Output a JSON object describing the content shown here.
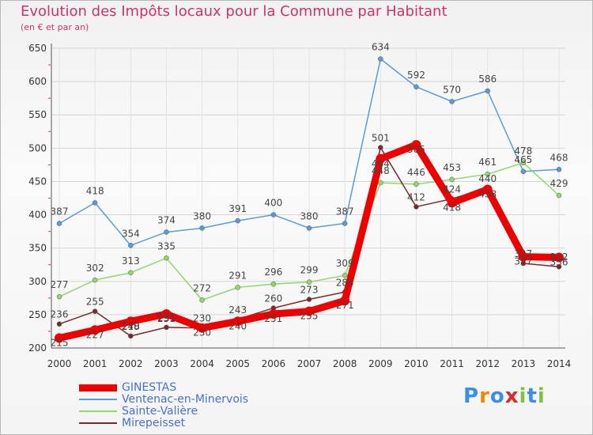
{
  "chart_data": {
    "type": "line",
    "title": "Evolution des Impôts locaux pour la Commune par Habitant",
    "subtitle": "(en € et par an)",
    "xlabel": "",
    "ylabel": "",
    "ylim": [
      200,
      650
    ],
    "yticks": [
      200,
      250,
      300,
      350,
      400,
      450,
      500,
      550,
      600,
      650
    ],
    "grid": true,
    "legend_position": "bottom-left",
    "x": [
      "2000",
      "2001",
      "2002",
      "2003",
      "2004",
      "2005",
      "2006",
      "2007",
      "2008",
      "2009",
      "2010",
      "2011",
      "2012",
      "2013",
      "2014"
    ],
    "series": [
      {
        "name": "Ventenac-en-Minervois",
        "color": "#5b9bd5",
        "values": [
          387,
          418,
          354,
          374,
          380,
          391,
          400,
          380,
          387,
          634,
          592,
          570,
          586,
          465,
          468
        ],
        "labels": [
          "387",
          "418",
          "354",
          "374",
          "380",
          "391",
          "400",
          "380",
          "387",
          "634",
          "592",
          "570",
          "586",
          "465",
          "468"
        ]
      },
      {
        "name": "Sainte-Valière",
        "color": "#8fd86a",
        "values": [
          277,
          302,
          313,
          335,
          272,
          291,
          296,
          299,
          309,
          448,
          446,
          453,
          461,
          478,
          429
        ],
        "labels": [
          "277",
          "302",
          "313",
          "335",
          "272",
          "291",
          "296",
          "299",
          "309",
          "448",
          "446",
          "453",
          "461",
          "478",
          "429"
        ]
      },
      {
        "name": "Mirepeisset",
        "color": "#7a2a2a",
        "values": [
          236,
          255,
          218,
          231,
          230,
          243,
          260,
          273,
          284,
          501,
          412,
          424,
          440,
          327,
          322
        ],
        "labels": [
          "236",
          "255",
          "218",
          "231",
          "230",
          "243",
          "260",
          "273",
          "284",
          "501",
          "412",
          "424",
          "440",
          "327",
          "322"
        ]
      },
      {
        "name": "GINESTAS",
        "color": "#ee0000",
        "values": [
          215,
          227,
          240,
          251,
          230,
          240,
          251,
          255,
          271,
          484,
          505,
          418,
          438,
          337,
          336
        ],
        "labels": [
          "215",
          "227",
          "240",
          "251",
          "230",
          "240",
          "251",
          "255",
          "271",
          "484",
          "505",
          "418",
          "438",
          "337",
          "336"
        ]
      }
    ],
    "legend": [
      {
        "name": "GINESTAS",
        "color": "#ee0000",
        "width": 9
      },
      {
        "name": "Ventenac-en-Minervois",
        "color": "#5b9bd5",
        "width": 2
      },
      {
        "name": "Sainte-Valière",
        "color": "#8fd86a",
        "width": 2
      },
      {
        "name": "Mirepeisset",
        "color": "#7a2a2a",
        "width": 2
      }
    ]
  },
  "logo": {
    "letters": [
      "P",
      "r",
      "o",
      "x",
      "i",
      "t",
      "i"
    ],
    "colors": [
      "#3a8ee6",
      "#f08a00",
      "#3a8ee6",
      "#e0262d",
      "#7dc243",
      "#3a8ee6",
      "#7dc243"
    ]
  }
}
